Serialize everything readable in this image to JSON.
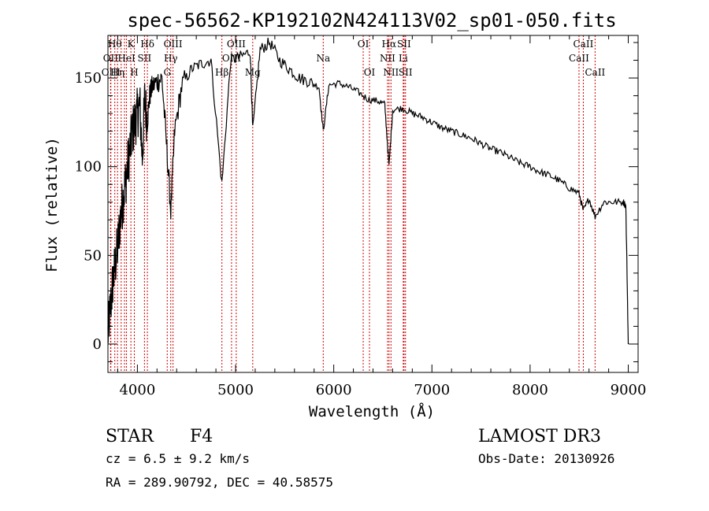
{
  "chart_data": {
    "type": "line",
    "title": "spec-56562-KP192102N424113V02_sp01-050.fits",
    "xlabel": "Wavelength (Å)",
    "ylabel": "Flux (relative)",
    "xlim": [
      3700,
      9100
    ],
    "ylim": [
      -16,
      174
    ],
    "x_ticks": [
      4000,
      5000,
      6000,
      7000,
      8000,
      9000
    ],
    "y_ticks": [
      0,
      50,
      100,
      150
    ],
    "grid": false,
    "legend": "none",
    "series": [
      {
        "name": "spectrum",
        "x": [
          3700,
          3725,
          3750,
          3775,
          3800,
          3825,
          3850,
          3875,
          3900,
          3925,
          3950,
          3975,
          4000,
          4025,
          4050,
          4075,
          4100,
          4125,
          4150,
          4200,
          4250,
          4300,
          4340,
          4380,
          4450,
          4550,
          4650,
          4750,
          4861,
          4950,
          5050,
          5150,
          5175,
          5250,
          5350,
          5450,
          5550,
          5650,
          5750,
          5850,
          5893,
          5950,
          6050,
          6150,
          6250,
          6350,
          6450,
          6520,
          6563,
          6600,
          6700,
          6800,
          6900,
          7000,
          7100,
          7200,
          7300,
          7400,
          7500,
          7600,
          7700,
          7800,
          7900,
          8000,
          8100,
          8200,
          8300,
          8400,
          8498,
          8542,
          8600,
          8662,
          8750,
          8850,
          8950,
          8975,
          9000
        ],
        "y": [
          5,
          20,
          35,
          45,
          55,
          70,
          80,
          90,
          100,
          110,
          120,
          125,
          130,
          135,
          105,
          138,
          125,
          140,
          145,
          148,
          150,
          110,
          75,
          120,
          145,
          155,
          158,
          160,
          90,
          160,
          162,
          165,
          120,
          166,
          170,
          160,
          155,
          150,
          148,
          145,
          120,
          146,
          147,
          145,
          142,
          138,
          137,
          135,
          100,
          132,
          133,
          130,
          128,
          125,
          122,
          120,
          118,
          116,
          113,
          110,
          108,
          105,
          102,
          100,
          97,
          95,
          92,
          88,
          85,
          75,
          82,
          72,
          80,
          80,
          80,
          78,
          0
        ]
      }
    ],
    "line_markers": [
      {
        "wavelength": 3727,
        "label": "OII",
        "row": 1
      },
      {
        "wavelength": 3730,
        "label": "OIII",
        "row": 2
      },
      {
        "wavelength": 3770,
        "label": "Hθ",
        "row": 0
      },
      {
        "wavelength": 3798,
        "label": "Hη",
        "row": 2
      },
      {
        "wavelength": 3835,
        "label": "",
        "row": 0
      },
      {
        "wavelength": 3869,
        "label": "",
        "row": 0
      },
      {
        "wavelength": 3889,
        "label": "HeI",
        "row": 1
      },
      {
        "wavelength": 3934,
        "label": "K",
        "row": 0
      },
      {
        "wavelength": 3969,
        "label": "H",
        "row": 2
      },
      {
        "wavelength": 4072,
        "label": "SII",
        "row": 1
      },
      {
        "wavelength": 4102,
        "label": "Hδ",
        "row": 0
      },
      {
        "wavelength": 4304,
        "label": "G",
        "row": 2
      },
      {
        "wavelength": 4340,
        "label": "Hγ",
        "row": 1
      },
      {
        "wavelength": 4363,
        "label": "OIII",
        "row": 0
      },
      {
        "wavelength": 4861,
        "label": "Hβ",
        "row": 2
      },
      {
        "wavelength": 4959,
        "label": "OIII",
        "row": 1
      },
      {
        "wavelength": 5007,
        "label": "OIII",
        "row": 0
      },
      {
        "wavelength": 5175,
        "label": "Mg",
        "row": 2
      },
      {
        "wavelength": 5893,
        "label": "Na",
        "row": 1
      },
      {
        "wavelength": 6300,
        "label": "OI",
        "row": 0
      },
      {
        "wavelength": 6364,
        "label": "OI",
        "row": 2
      },
      {
        "wavelength": 6548,
        "label": "NII",
        "row": 1
      },
      {
        "wavelength": 6563,
        "label": "Hα",
        "row": 0
      },
      {
        "wavelength": 6583,
        "label": "NII",
        "row": 2
      },
      {
        "wavelength": 6708,
        "label": "Li",
        "row": 1
      },
      {
        "wavelength": 6716,
        "label": "SII",
        "row": 0
      },
      {
        "wavelength": 6731,
        "label": "SII",
        "row": 2
      },
      {
        "wavelength": 8498,
        "label": "CaII",
        "row": 1
      },
      {
        "wavelength": 8542,
        "label": "CaII",
        "row": 0
      },
      {
        "wavelength": 8662,
        "label": "CaII",
        "row": 2
      }
    ]
  },
  "info": {
    "object_class": "STAR",
    "subclass": "F4",
    "survey": "LAMOST DR3",
    "redshift": "cz = 6.5 ± 9.2 km/s",
    "obs_date": "Obs-Date: 20130926",
    "coords": "RA = 289.90792, DEC =  40.58575"
  }
}
